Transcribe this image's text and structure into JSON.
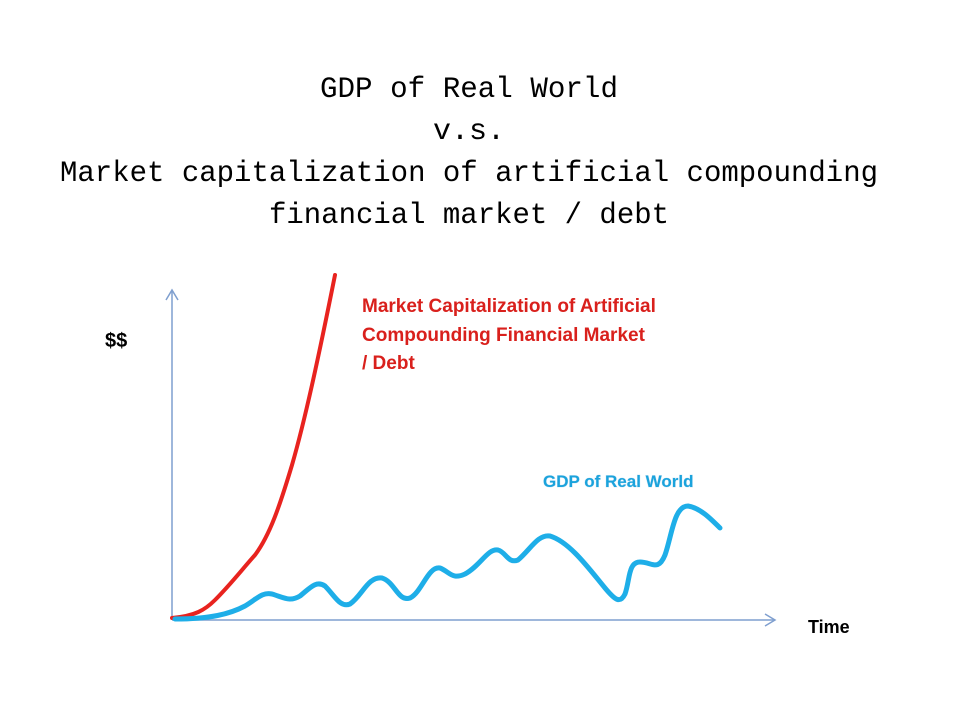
{
  "title": {
    "lines": [
      "GDP of Real World",
      "v.s.",
      "Market capitalization of artificial compounding",
      "financial market / debt"
    ]
  },
  "y_axis_label": "$$",
  "x_axis_label": "Time",
  "labels": {
    "market": [
      "Market Capitalization of Artificial",
      "Compounding Financial Market",
      "/ Debt"
    ],
    "gdp": "GDP of Real World"
  }
}
